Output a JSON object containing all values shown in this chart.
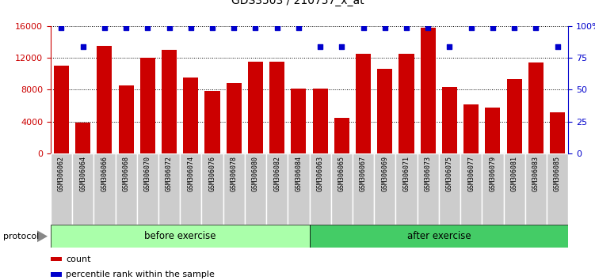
{
  "title": "GDS3503 / 210757_x_at",
  "categories": [
    "GSM306062",
    "GSM306064",
    "GSM306066",
    "GSM306068",
    "GSM306070",
    "GSM306072",
    "GSM306074",
    "GSM306076",
    "GSM306078",
    "GSM306080",
    "GSM306082",
    "GSM306084",
    "GSM306063",
    "GSM306065",
    "GSM306067",
    "GSM306069",
    "GSM306071",
    "GSM306073",
    "GSM306075",
    "GSM306077",
    "GSM306079",
    "GSM306081",
    "GSM306083",
    "GSM306085"
  ],
  "counts": [
    11000,
    3900,
    13500,
    8500,
    12000,
    13000,
    9500,
    7800,
    8800,
    11500,
    11500,
    8100,
    8100,
    4500,
    12500,
    10600,
    12500,
    15800,
    8300,
    6200,
    5800,
    9300,
    11400,
    5200
  ],
  "percentiles": [
    99,
    84,
    99,
    99,
    99,
    99,
    99,
    99,
    99,
    99,
    99,
    99,
    84,
    84,
    99,
    99,
    99,
    99,
    84,
    99,
    99,
    99,
    99,
    84
  ],
  "groups": [
    "before",
    "before",
    "before",
    "before",
    "before",
    "before",
    "before",
    "before",
    "before",
    "before",
    "before",
    "before",
    "after",
    "after",
    "after",
    "after",
    "after",
    "after",
    "after",
    "after",
    "after",
    "after",
    "after",
    "after"
  ],
  "group_labels": [
    "before exercise",
    "after exercise"
  ],
  "group_colors": [
    "#AAFFAA",
    "#44CC66"
  ],
  "bar_color": "#CC0000",
  "dot_color": "#0000CC",
  "ylim_left": [
    0,
    16000
  ],
  "ylim_right": [
    0,
    100
  ],
  "yticks_left": [
    0,
    4000,
    8000,
    12000,
    16000
  ],
  "yticks_right": [
    0,
    25,
    50,
    75,
    100
  ],
  "bg_color": "#FFFFFF",
  "protocol_label": "protocol",
  "legend_count_label": "count",
  "legend_percentile_label": "percentile rank within the sample",
  "col_bg_color": "#CCCCCC",
  "col_border_color": "#FFFFFF"
}
